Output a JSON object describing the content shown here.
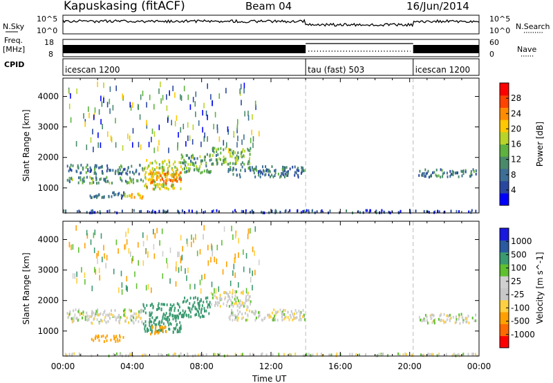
{
  "header": {
    "station": "Kapuskasing (fitACF)",
    "beam": "Beam 04",
    "date": "16/Jun/2014"
  },
  "strips": {
    "nsky_label": "N.Sky",
    "nsky_ticks": [
      "10^5",
      "10^0"
    ],
    "nsearch_label": "N.Search",
    "nsearch_ticks": [
      "10^5",
      "10^0"
    ],
    "freq_label": "Freq.",
    "freq_unit": "[MHz]",
    "freq_ticks": [
      "18",
      "8"
    ],
    "nave_label": "Nave",
    "nave_ticks": [
      "60",
      "0"
    ],
    "cpid_label": "CPID",
    "modes": [
      {
        "label": "icescan 1200",
        "start": 0,
        "end": 14
      },
      {
        "label": "tau (fast) 503",
        "start": 14,
        "end": 20.2
      },
      {
        "label": "icescan 1200",
        "start": 20.2,
        "end": 24
      }
    ]
  },
  "colors": {
    "power": [
      "#0000ff",
      "#2a47a0",
      "#3d6e95",
      "#4a8a6a",
      "#5fb23f",
      "#b8d428",
      "#ffc800",
      "#ff8c00",
      "#ff4400",
      "#ff0000"
    ],
    "velocity": [
      "#ff0000",
      "#ff6a00",
      "#ffa000",
      "#ffd040",
      "#c8c8c8",
      "#d0d0d0",
      "#5fc030",
      "#3a9a70",
      "#2a5aa0",
      "#1818e0"
    ]
  },
  "chart_data": [
    {
      "type": "heatmap",
      "title": "Power",
      "xlabel": "",
      "ylabel": "Slant Range [km]",
      "xlim": [
        0,
        24
      ],
      "ylim": [
        180,
        4600
      ],
      "x_ticks": [
        "00:00",
        "04:00",
        "08:00",
        "12:00",
        "16:00",
        "20:00",
        "00:00"
      ],
      "y_ticks": [
        1000,
        2000,
        3000,
        4000
      ],
      "colorbar": {
        "label": "Power [dB]",
        "ticks": [
          4,
          8,
          12,
          16,
          20,
          24,
          28
        ],
        "range": [
          0,
          30
        ]
      },
      "regions": [
        {
          "t0": 0.2,
          "t1": 4.6,
          "r0": 1450,
          "r1": 1750,
          "value": 9
        },
        {
          "t0": 0.2,
          "t1": 4.6,
          "r0": 1150,
          "r1": 1350,
          "value": 11
        },
        {
          "t0": 1.5,
          "t1": 3.5,
          "r0": 650,
          "r1": 850,
          "value": 7
        },
        {
          "t0": 3.5,
          "t1": 4.6,
          "r0": 650,
          "r1": 850,
          "value": 20
        },
        {
          "t0": 4.6,
          "t1": 6.8,
          "r0": 950,
          "r1": 1900,
          "value": 17
        },
        {
          "t0": 5.0,
          "t1": 6.8,
          "r0": 1150,
          "r1": 1550,
          "value": 22
        },
        {
          "t0": 6.8,
          "t1": 8.5,
          "r0": 1450,
          "r1": 2100,
          "value": 12
        },
        {
          "t0": 8.5,
          "t1": 10.8,
          "r0": 1750,
          "r1": 2300,
          "value": 13
        },
        {
          "t0": 9.5,
          "t1": 14.0,
          "r0": 1350,
          "r1": 1700,
          "value": 8
        },
        {
          "t0": 20.5,
          "t1": 23.8,
          "r0": 1350,
          "r1": 1600,
          "value": 8
        },
        {
          "t0": 0.0,
          "t1": 24.0,
          "r0": 180,
          "r1": 260,
          "value": 5
        }
      ]
    },
    {
      "type": "heatmap",
      "title": "Velocity",
      "xlabel": "Time UT",
      "ylabel": "Slant Range [km]",
      "xlim": [
        0,
        24
      ],
      "ylim": [
        180,
        4600
      ],
      "x_ticks": [
        "00:00",
        "04:00",
        "08:00",
        "12:00",
        "16:00",
        "20:00",
        "00:00"
      ],
      "y_ticks": [
        1000,
        2000,
        3000,
        4000
      ],
      "colorbar": {
        "label": "Velocity [m s^-1]",
        "ticks": [
          "1000",
          "500",
          "100",
          "25",
          "-25",
          "-100",
          "-500",
          "-1000"
        ]
      },
      "regions": [
        {
          "t0": 0.2,
          "t1": 4.6,
          "r0": 1250,
          "r1": 1700,
          "value": 0
        },
        {
          "t0": 1.5,
          "t1": 3.5,
          "r0": 650,
          "r1": 850,
          "value": -150
        },
        {
          "t0": 4.6,
          "t1": 6.8,
          "r0": 950,
          "r1": 1900,
          "value": 300
        },
        {
          "t0": 5.0,
          "t1": 6.0,
          "r0": 900,
          "r1": 1150,
          "value": -150
        },
        {
          "t0": 6.8,
          "t1": 8.5,
          "r0": 1450,
          "r1": 2100,
          "value": 150
        },
        {
          "t0": 8.5,
          "t1": 10.8,
          "r0": 1750,
          "r1": 2300,
          "value": 0
        },
        {
          "t0": 9.5,
          "t1": 14.0,
          "r0": 1350,
          "r1": 1700,
          "value": 0
        },
        {
          "t0": 20.5,
          "t1": 23.8,
          "r0": 1250,
          "r1": 1550,
          "value": 0
        },
        {
          "t0": 0.0,
          "t1": 24.0,
          "r0": 180,
          "r1": 260,
          "value": 0
        }
      ]
    }
  ]
}
